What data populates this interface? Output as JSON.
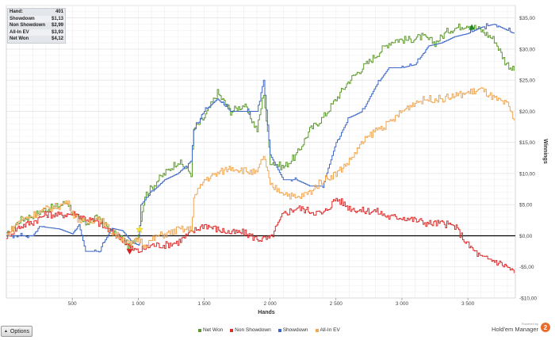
{
  "stats": [
    {
      "label": "Hand:",
      "value": "401"
    },
    {
      "label": "Showdown",
      "value": "$1,13"
    },
    {
      "label": "Non Showdown",
      "value": "$2,99"
    },
    {
      "label": "All-In EV",
      "value": "$3,93"
    },
    {
      "label": "Net Won",
      "value": "$4,12"
    }
  ],
  "options": {
    "label": "Options",
    "icon": "triangle-up-icon"
  },
  "branding": {
    "powered_by": "Powered by",
    "name": "Hold'em Manager",
    "logo": "2"
  },
  "chart_data": {
    "type": "line",
    "xlabel": "Hands",
    "ylabel": "Winnings",
    "xlim": [
      0,
      3860
    ],
    "ylim": [
      -10,
      37
    ],
    "x_ticks": [
      500,
      1000,
      1500,
      2000,
      2500,
      3000,
      3500
    ],
    "x_tick_labels": [
      "500",
      "1 000",
      "1 500",
      "2 000",
      "2 500",
      "3 000",
      "3 500"
    ],
    "y_ticks": [
      -10,
      -5,
      0,
      5,
      10,
      15,
      20,
      25,
      30,
      35
    ],
    "y_tick_labels": [
      "-$10,00",
      "-$5,00",
      "$0,00",
      "$5,00",
      "$10,00",
      "$15,00",
      "$20,00",
      "$25,00",
      "$30,00",
      "$35,00"
    ],
    "grid": true,
    "legend_position": "bottom-center",
    "series": [
      {
        "name": "Net Won",
        "color": "#5e9a2f",
        "x": [
          0,
          100,
          200,
          300,
          400,
          460,
          520,
          600,
          700,
          800,
          880,
          940,
          1000,
          1050,
          1150,
          1250,
          1300,
          1400,
          1420,
          1500,
          1600,
          1700,
          1800,
          1900,
          1950,
          2000,
          2100,
          2200,
          2300,
          2400,
          2500,
          2600,
          2700,
          2800,
          2900,
          2950,
          3050,
          3150,
          3250,
          3350,
          3420,
          3500,
          3600,
          3700,
          3780,
          3850
        ],
        "y": [
          0,
          2.5,
          3.3,
          4.3,
          4.8,
          5.5,
          3,
          2,
          3,
          0.5,
          -0.5,
          -2,
          0.5,
          6.5,
          9,
          11,
          12,
          10,
          17,
          19,
          23,
          20,
          21,
          17,
          23,
          12,
          11,
          13,
          17,
          19,
          22,
          25,
          27,
          29,
          31,
          31.5,
          31.5,
          32,
          31,
          33,
          33.5,
          34,
          33,
          31.5,
          28,
          26.5
        ]
      },
      {
        "name": "Non Showdown",
        "color": "#e02b2b",
        "x": [
          0,
          100,
          200,
          300,
          400,
          460,
          520,
          600,
          700,
          800,
          880,
          940,
          1000,
          1100,
          1200,
          1300,
          1400,
          1500,
          1600,
          1700,
          1800,
          1900,
          2000,
          2100,
          2200,
          2300,
          2400,
          2500,
          2600,
          2700,
          2800,
          2900,
          3000,
          3100,
          3200,
          3300,
          3400,
          3500,
          3600,
          3700,
          3800,
          3850
        ],
        "y": [
          0,
          1.5,
          2.2,
          3.5,
          3.3,
          3.5,
          3.5,
          2.8,
          2,
          0.5,
          -0.5,
          -2,
          -2.5,
          -1.5,
          -1.5,
          -1,
          0.5,
          1.8,
          1,
          0.5,
          0.5,
          -0.5,
          -0.5,
          3.5,
          4.5,
          4,
          3.5,
          6,
          4.5,
          4,
          4,
          3,
          3,
          2.5,
          2,
          2,
          1.5,
          -1.5,
          -3.5,
          -4,
          -5,
          -6
        ]
      },
      {
        "name": "Showdown",
        "color": "#3c67c8",
        "x": [
          0,
          200,
          250,
          400,
          500,
          550,
          600,
          700,
          800,
          880,
          950,
          1000,
          1020,
          1100,
          1200,
          1300,
          1400,
          1420,
          1500,
          1600,
          1700,
          1800,
          1900,
          1950,
          2000,
          2100,
          2200,
          2300,
          2400,
          2500,
          2600,
          2700,
          2800,
          2900,
          3000,
          3100,
          3200,
          3300,
          3400,
          3500,
          3600,
          3700,
          3800,
          3850
        ],
        "y": [
          0,
          0,
          1.5,
          1.1,
          0.3,
          1.8,
          -2.5,
          -2.5,
          1.2,
          0.8,
          -1,
          -1.5,
          5,
          7,
          9,
          10,
          12,
          17,
          20,
          22,
          20,
          20,
          20,
          25,
          13,
          9,
          9,
          8,
          8,
          15,
          19,
          20,
          24,
          27,
          27,
          27.5,
          30.5,
          31,
          32,
          32.5,
          33.5,
          34,
          33,
          32.5
        ]
      },
      {
        "name": "All-In EV",
        "color": "#f2a650",
        "x": [
          0,
          100,
          200,
          300,
          400,
          460,
          520,
          600,
          700,
          800,
          880,
          940,
          1000,
          1050,
          1150,
          1250,
          1300,
          1400,
          1420,
          1500,
          1600,
          1700,
          1800,
          1900,
          1950,
          2000,
          2100,
          2200,
          2300,
          2400,
          2500,
          2600,
          2700,
          2800,
          2900,
          3000,
          3100,
          3200,
          3300,
          3400,
          3500,
          3600,
          3700,
          3800,
          3850
        ],
        "y": [
          0,
          2.5,
          3.3,
          4.3,
          4.8,
          5.5,
          3,
          2,
          3,
          0.5,
          -0.5,
          -1.5,
          -0.5,
          -1.5,
          0,
          0.5,
          1,
          1,
          6,
          9,
          10,
          11,
          10.5,
          10,
          13,
          8,
          7,
          6,
          7,
          9,
          10,
          12,
          15,
          17,
          18,
          20,
          21.5,
          22,
          22,
          22.5,
          23,
          23.5,
          22,
          21,
          18.5
        ]
      }
    ],
    "markers": [
      {
        "icon": "green-triangle-up-icon",
        "x": 3530,
        "y": 33.5,
        "color": "#1f8a1f"
      },
      {
        "icon": "red-triangle-down-icon",
        "x": 935,
        "y": -2.5,
        "color": "#d62020"
      },
      {
        "icon": "yellow-star-icon",
        "x": 1010,
        "y": 1,
        "color": "#f4e233"
      }
    ]
  }
}
